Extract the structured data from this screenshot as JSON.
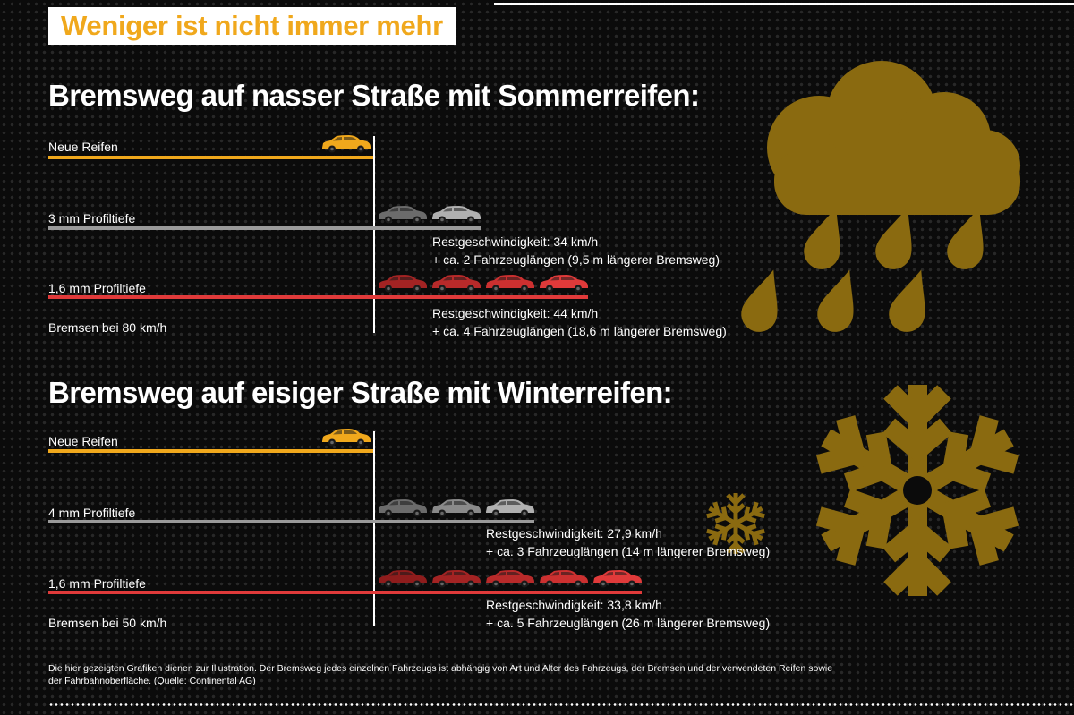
{
  "title": "Weniger ist nicht immer mehr",
  "colors": {
    "yellow": "#f0a81c",
    "gray": "#9a9a9a",
    "red": "#e03a3a",
    "icon_gold": "#8a6a10",
    "background": "#0b0b0b"
  },
  "icons": [
    "rain-cloud-icon",
    "large-snowflake-icon",
    "small-snowflake-icon",
    "car-icon"
  ],
  "chart_data": [
    {
      "type": "bar",
      "title": "Bremsweg auf nasser Straße mit Sommerreifen:",
      "speed_label": "Bremsen bei 80 km/h",
      "unit": "Fahrzeuglängen",
      "series": [
        {
          "name": "Neue Reifen",
          "extra_car_lengths": 0,
          "color": "yellow"
        },
        {
          "name": "3 mm Profiltiefe",
          "extra_car_lengths": 2,
          "color": "gray",
          "annotation": [
            "Restgeschwindigkeit: 34 km/h",
            "+ ca. 2 Fahrzeuglängen (9,5 m längerer Bremsweg)"
          ]
        },
        {
          "name": "1,6 mm Profiltiefe",
          "extra_car_lengths": 4,
          "color": "red",
          "annotation": [
            "Restgeschwindigkeit: 44 km/h",
            "+ ca. 4 Fahrzeuglängen (18,6 m längerer Bremsweg)"
          ]
        }
      ]
    },
    {
      "type": "bar",
      "title": "Bremsweg auf eisiger Straße mit Winterreifen:",
      "speed_label": "Bremsen bei 50 km/h",
      "unit": "Fahrzeuglängen",
      "series": [
        {
          "name": "Neue Reifen",
          "extra_car_lengths": 0,
          "color": "yellow"
        },
        {
          "name": "4 mm Profiltiefe",
          "extra_car_lengths": 3,
          "color": "gray",
          "annotation": [
            "Restgeschwindigkeit: 27,9 km/h",
            "+ ca. 3 Fahrzeuglängen (14 m längerer Bremsweg)"
          ]
        },
        {
          "name": "1,6 mm Profiltiefe",
          "extra_car_lengths": 5,
          "color": "red",
          "annotation": [
            "Restgeschwindigkeit: 33,8 km/h",
            "+ ca. 5 Fahrzeuglängen (26 m längerer Bremsweg)"
          ]
        }
      ]
    }
  ],
  "footnote": "Die hier gezeigten Grafiken dienen zur Illustration. Der Bremsweg jedes einzelnen Fahrzeugs ist abhängig von Art und Alter des Fahrzeugs, der Bremsen und der verwendeten Reifen sowie der Fahrbahnoberfläche. (Quelle: Continental AG)"
}
